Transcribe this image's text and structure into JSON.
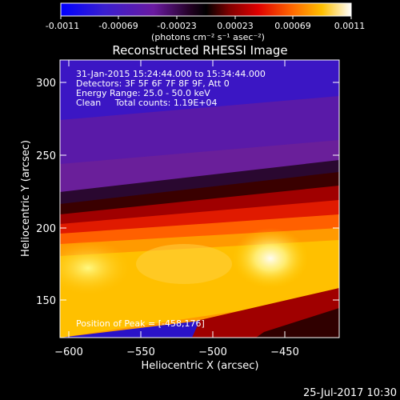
{
  "colorbar": {
    "tick_labels": [
      "-0.0011",
      "-0.00069",
      "-0.00023",
      "0.00023",
      "0.00069",
      "0.0011"
    ],
    "units_label": "(photons cm⁻² s⁻¹ asec⁻²)"
  },
  "title": "Reconstructed RHESSI Image",
  "annotation": {
    "time_range": "31-Jan-2015 15:24:44.000 to 15:34:44.000",
    "detectors": "Detectors: 3F 5F 6F 7F 8F 9F, Att 0",
    "energy_range": "Energy Range: 25.0 - 50.0 keV",
    "algorithm": "Clean     Total counts: 1.19E+04",
    "peak": "Position of Peak = [-458,176]"
  },
  "axes": {
    "xlabel": "Heliocentric X (arcsec)",
    "ylabel": "Heliocentric Y (arcsec)",
    "x_ticks": [
      "−600",
      "−550",
      "−500",
      "−450"
    ],
    "y_ticks": [
      "300",
      "250",
      "200",
      "150"
    ],
    "xlim": [
      -612,
      -413
    ],
    "ylim": [
      122,
      320
    ]
  },
  "footer": {
    "timestamp": "25-Jul-2017 10:30"
  }
}
